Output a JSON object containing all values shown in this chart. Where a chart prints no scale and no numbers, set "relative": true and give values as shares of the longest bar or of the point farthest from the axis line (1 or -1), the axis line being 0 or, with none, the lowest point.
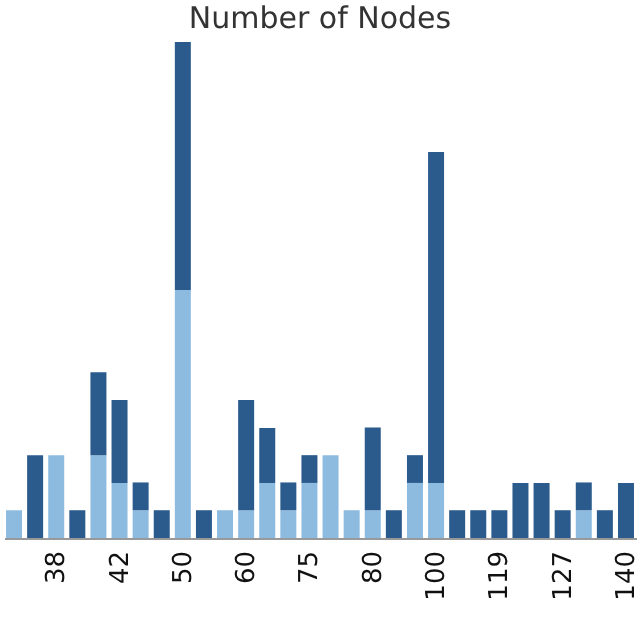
{
  "chart_data": {
    "type": "bar",
    "title": "Number of Nodes",
    "relative": true,
    "stacked": true,
    "categories": [
      null,
      null,
      "38",
      null,
      null,
      "42",
      null,
      null,
      "50",
      null,
      null,
      "60",
      null,
      null,
      "75",
      null,
      null,
      "80",
      null,
      null,
      "100",
      null,
      null,
      "119",
      null,
      null,
      "127",
      null,
      null,
      "140"
    ],
    "series": [
      {
        "color": "#8dbbe0",
        "values": [
          0.056,
          0,
          0.167,
          0,
          0.167,
          0.111,
          0.056,
          0,
          0.5,
          0,
          0.056,
          0.056,
          0.111,
          0.056,
          0.111,
          0.167,
          0.056,
          0.056,
          0,
          0.111,
          0.111,
          0,
          0,
          0,
          0,
          0,
          0,
          0.056,
          0,
          0
        ]
      },
      {
        "color": "#2b5b8c",
        "values": [
          0,
          0.167,
          0,
          0.056,
          0.167,
          0.167,
          0.056,
          0.056,
          0.5,
          0.056,
          0,
          0.222,
          0.111,
          0.056,
          0.056,
          0,
          0,
          0.167,
          0.056,
          0.056,
          0.667,
          0.056,
          0.056,
          0.056,
          0.111,
          0.111,
          0.056,
          0.056,
          0.056,
          0.111
        ]
      }
    ]
  }
}
